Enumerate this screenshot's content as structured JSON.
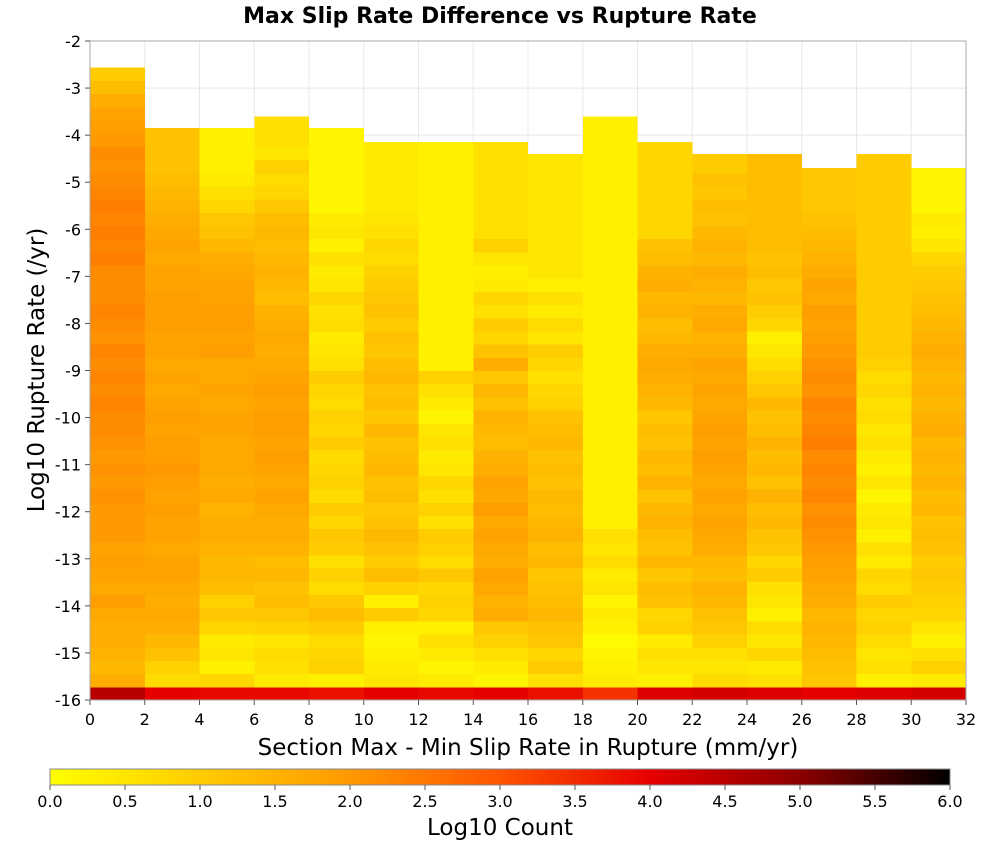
{
  "chart_data": {
    "type": "heatmap",
    "title": "Max Slip Rate Difference vs Rupture Rate",
    "xlabel": "Section Max - Min Slip Rate in Rupture (mm/yr)",
    "ylabel": "Log10 Rupture Rate (/yr)",
    "xlim": [
      0,
      32
    ],
    "ylim": [
      -16,
      -2
    ],
    "x_ticks": [
      0,
      2,
      4,
      6,
      8,
      10,
      12,
      14,
      16,
      18,
      20,
      22,
      24,
      26,
      28,
      30,
      32
    ],
    "y_ticks": [
      -2,
      -3,
      -4,
      -5,
      -6,
      -7,
      -8,
      -9,
      -10,
      -11,
      -12,
      -13,
      -14,
      -15,
      -16
    ],
    "grid": true,
    "x_bin_width": 2,
    "y_bin_height": 0.28,
    "y_bins_start": -16,
    "colorbar": {
      "label": "Log10 Count",
      "min": 0.0,
      "max": 6.0,
      "ticks": [
        "0.0",
        "0.5",
        "1.0",
        "1.5",
        "2.0",
        "2.5",
        "3.0",
        "3.5",
        "4.0",
        "4.5",
        "5.0",
        "5.5",
        "6.0"
      ],
      "position": "bottom",
      "colors": [
        "#ffff00",
        "#ffcc00",
        "#ff9900",
        "#ff5500",
        "#e60000",
        "#8b0000",
        "#000000"
      ]
    },
    "columns": [
      {
        "x": 0,
        "top": -2.7,
        "gaps": [],
        "values": [
          4.5,
          1.6,
          1.4,
          1.5,
          1.6,
          1.6,
          1.7,
          1.9,
          1.7,
          1.8,
          1.9,
          1.8,
          2.0,
          2.0,
          2.0,
          2.1,
          2.0,
          2.1,
          2.0,
          2.1,
          2.2,
          2.2,
          2.3,
          2.2,
          2.3,
          2.2,
          2.3,
          2.1,
          2.2,
          2.3,
          2.2,
          2.2,
          2.2,
          2.4,
          2.3,
          2.4,
          2.3,
          2.4,
          2.3,
          2.2,
          2.1,
          2.2,
          2.0,
          1.9,
          1.8,
          1.6,
          1.3,
          1.0,
          0.6,
          0.3
        ]
      },
      {
        "x": 2,
        "top": -3.85,
        "gaps": [
          -15.68
        ],
        "values": [
          4.0,
          0.7,
          0.9,
          1.2,
          1.4,
          1.6,
          1.7,
          1.6,
          1.7,
          1.8,
          1.8,
          1.7,
          1.8,
          1.8,
          1.9,
          1.8,
          1.9,
          2.0,
          1.9,
          1.9,
          1.8,
          1.9,
          1.8,
          1.7,
          1.8,
          1.7,
          1.8,
          1.8,
          1.9,
          1.9,
          1.9,
          1.8,
          1.8,
          1.7,
          1.8,
          1.7,
          1.6,
          1.5,
          1.4,
          1.3,
          1.2
        ]
      },
      {
        "x": 4,
        "top": -3.85,
        "gaps": [
          -15.4
        ],
        "values": [
          3.9,
          0.8,
          0.3,
          0.5,
          0.4,
          0.8,
          1.1,
          0.9,
          1.3,
          1.4,
          1.4,
          1.5,
          1.6,
          1.6,
          1.5,
          1.7,
          1.6,
          1.7,
          1.7,
          1.7,
          1.8,
          1.8,
          1.7,
          1.8,
          1.7,
          1.7,
          1.9,
          1.8,
          1.9,
          1.9,
          1.8,
          1.8,
          1.7,
          1.6,
          1.4,
          1.2,
          1.1,
          0.8,
          0.6,
          0.4,
          0.3
        ]
      },
      {
        "x": 6,
        "top": -3.6,
        "gaps": [
          -15.68,
          -14.84,
          -14.56,
          -4.4
        ],
        "values": [
          3.9,
          0.4,
          0.6,
          0.7,
          0.5,
          0.9,
          1.1,
          1.3,
          1.2,
          1.4,
          1.3,
          1.5,
          1.6,
          1.6,
          1.7,
          1.8,
          1.7,
          1.8,
          1.9,
          1.8,
          1.9,
          1.9,
          1.8,
          1.9,
          1.8,
          1.7,
          1.6,
          1.7,
          1.6,
          1.5,
          1.3,
          1.4,
          1.5,
          1.4,
          1.3,
          1.4,
          1.3,
          1.1,
          0.8,
          0.7,
          0.9,
          0.5,
          0.6
        ]
      },
      {
        "x": 8,
        "top": -3.85,
        "gaps": [
          -15.4,
          -15.12,
          -14.84,
          -14.56,
          -14.28,
          -14.0,
          -13.72,
          -13.44
        ],
        "values": [
          3.8,
          0.3,
          0.9,
          0.8,
          0.7,
          1.0,
          1.3,
          1.1,
          0.7,
          0.9,
          0.6,
          1.0,
          1.1,
          0.8,
          1.0,
          0.7,
          0.9,
          0.8,
          0.7,
          1.0,
          0.8,
          0.9,
          0.7,
          0.8,
          1.0,
          0.6,
          0.5,
          0.4,
          0.7,
          0.6,
          0.8,
          0.5,
          0.4,
          0.6,
          0.3,
          0.5,
          0.4,
          0.2
        ]
      },
      {
        "x": 10,
        "top": -4.15,
        "gaps": [
          -15.4,
          -15.12,
          -14.0,
          -13.72
        ],
        "values": [
          4.0,
          0.5,
          0.4,
          0.3,
          0.2,
          0.3,
          1.0,
          0.3,
          0.9,
          1.3,
          1.0,
          1.2,
          1.4,
          1.2,
          1.1,
          1.3,
          1.2,
          1.4,
          1.3,
          1.2,
          1.4,
          1.1,
          1.3,
          1.2,
          1.4,
          1.3,
          1.1,
          1.2,
          1.0,
          1.2,
          1.1,
          1.0,
          0.9,
          0.7,
          0.8,
          0.6,
          0.5,
          0.4
        ]
      },
      {
        "x": 12,
        "top": -4.15,
        "gaps": [
          -15.68,
          -15.4,
          -15.12,
          -14.84,
          -14.56,
          -14.28,
          -14.0,
          -13.72,
          -13.44,
          -12.32,
          -12.04,
          -7.28,
          -6.16
        ],
        "values": [
          3.9,
          0.4,
          0.2,
          0.4,
          0.6,
          0.3,
          0.8,
          0.9,
          0.8,
          1.1,
          0.7,
          0.9,
          1.0,
          0.6,
          0.9,
          0.6,
          0.8,
          0.5,
          0.4,
          0.6,
          0.5,
          0.2,
          0.4,
          0.6,
          0.9,
          0.3
        ]
      },
      {
        "x": 14,
        "top": -4.15,
        "gaps": [
          -14.84,
          -14.56,
          -14.28
        ],
        "values": [
          4.0,
          0.2,
          0.4,
          0.6,
          0.9,
          1.1,
          1.6,
          1.5,
          1.7,
          1.8,
          1.6,
          1.7,
          1.8,
          1.7,
          1.9,
          1.7,
          1.8,
          1.6,
          1.5,
          1.3,
          1.4,
          1.5,
          1.2,
          1.4,
          1.1,
          1.6,
          1.2,
          0.8,
          1.0,
          0.6,
          0.8,
          0.4,
          0.3,
          0.5,
          0.9,
          0.6
        ]
      },
      {
        "x": 16,
        "top": -4.4,
        "gaps": [
          -13.72,
          -13.44,
          -13.16,
          -12.88,
          -12.6
        ],
        "values": [
          3.8,
          0.6,
          1.0,
          0.8,
          1.1,
          1.2,
          1.4,
          1.3,
          1.2,
          1.1,
          1.4,
          1.3,
          1.5,
          1.4,
          1.3,
          1.4,
          1.2,
          1.3,
          1.2,
          1.4,
          1.3,
          1.2,
          0.9,
          0.8,
          0.6,
          0.8,
          1.0,
          0.5,
          0.7,
          0.4,
          0.6,
          0.3,
          0.5
        ]
      },
      {
        "x": 18,
        "top": -3.6,
        "gaps": [
          -15.4,
          -15.12,
          -14.84,
          -14.56,
          -14.28,
          -14.0,
          -13.72,
          -13.44,
          -13.16,
          -12.88,
          -12.6,
          -12.32,
          -11.76,
          -11.48,
          -11.2,
          -10.92,
          -10.64,
          -10.36,
          -9.8,
          -9.24,
          -8.68,
          -8.12,
          -7.56,
          -7.28,
          -7.0,
          -6.72,
          -6.44,
          -6.16,
          -5.88,
          -5.6,
          -4.4,
          -4.12
        ],
        "values": [
          3.4,
          0.4,
          0.3,
          0.2,
          0.1,
          0.3,
          0.4,
          0.2,
          0.5,
          0.4,
          0.7,
          0.5,
          0.6,
          0.3
        ]
      },
      {
        "x": 20,
        "top": -4.15,
        "gaps": [
          -15.68,
          -15.4,
          -15.12,
          -14.84,
          -13.44
        ],
        "values": [
          4.1,
          0.3,
          0.5,
          0.6,
          0.4,
          0.9,
          0.8,
          1.2,
          1.3,
          1.1,
          1.4,
          1.2,
          1.3,
          1.5,
          1.4,
          1.2,
          1.5,
          1.3,
          1.4,
          1.2,
          1.3,
          1.1,
          1.4,
          1.5,
          1.6,
          1.7,
          1.6,
          1.4,
          1.3,
          1.5,
          1.4,
          1.6,
          1.5,
          1.3,
          1.2,
          0.8
        ]
      },
      {
        "x": 22,
        "top": -4.4,
        "gaps": [],
        "values": [
          4.2,
          0.7,
          0.5,
          0.6,
          0.9,
          1.1,
          1.2,
          1.4,
          1.5,
          1.3,
          1.4,
          1.6,
          1.7,
          1.8,
          1.7,
          1.8,
          1.7,
          1.8,
          1.9,
          1.8,
          1.9,
          1.8,
          1.7,
          1.8,
          1.7,
          1.8,
          1.6,
          1.5,
          1.7,
          1.6,
          1.4,
          1.5,
          1.6,
          1.4,
          1.5,
          1.4,
          1.2,
          1.3,
          1.1,
          1.2,
          1.0
        ]
      },
      {
        "x": 24,
        "top": -4.4,
        "gaps": [
          -15.68,
          -15.4,
          -14.84,
          -14.56,
          -13.16,
          -12.88
        ],
        "values": [
          4.1,
          0.6,
          0.4,
          0.8,
          0.5,
          0.7,
          0.3,
          0.5,
          0.6,
          1.0,
          0.8,
          1.1,
          1.2,
          1.4,
          1.3,
          1.5,
          1.2,
          1.4,
          1.3,
          1.5,
          1.3,
          1.2,
          1.4,
          1.1,
          0.9,
          0.7,
          0.5,
          0.3,
          0.8,
          1.0,
          1.2,
          1.1,
          1.3,
          1.2,
          1.3
        ]
      },
      {
        "x": 26,
        "top": -4.7,
        "gaps": [
          -15.4,
          -15.12
        ],
        "values": [
          4.0,
          1.1,
          1.2,
          1.3,
          1.4,
          1.5,
          1.4,
          1.6,
          1.7,
          1.8,
          1.9,
          2.0,
          2.1,
          2.2,
          2.1,
          2.3,
          2.2,
          2.3,
          2.2,
          2.4,
          2.3,
          2.2,
          2.3,
          2.1,
          2.2,
          2.1,
          2.0,
          1.9,
          1.8,
          1.9,
          1.7,
          1.8,
          1.6,
          1.5,
          1.4,
          1.3,
          1.2,
          1.1
        ]
      },
      {
        "x": 28,
        "top": -4.4,
        "gaps": [
          -15.68,
          -15.4,
          -15.12,
          -14.84,
          -14.56,
          -14.28,
          -14.0,
          -13.44,
          -13.16,
          -12.6,
          -12.04,
          -6.72,
          -6.44,
          -6.16
        ],
        "values": [
          4.1,
          0.3,
          0.6,
          0.5,
          0.7,
          0.9,
          0.8,
          1.0,
          0.7,
          0.8,
          0.4,
          0.6,
          0.3,
          0.5,
          0.4,
          0.2,
          0.5,
          0.3,
          0.4,
          0.6,
          0.5,
          0.7,
          0.6,
          0.8,
          0.7,
          0.9,
          1.0
        ]
      },
      {
        "x": 30,
        "top": -4.7,
        "gaps": [],
        "values": [
          4.2,
          0.4,
          0.9,
          0.6,
          0.3,
          0.5,
          0.8,
          0.9,
          1.0,
          1.1,
          1.0,
          1.2,
          1.3,
          1.2,
          1.4,
          1.3,
          1.5,
          1.4,
          1.5,
          1.4,
          1.6,
          1.5,
          1.4,
          1.5,
          1.4,
          1.5,
          1.6,
          1.5,
          1.4,
          1.3,
          1.2,
          1.1,
          1.0,
          0.8,
          0.5,
          0.3,
          0.4,
          0.2
        ]
      }
    ]
  }
}
